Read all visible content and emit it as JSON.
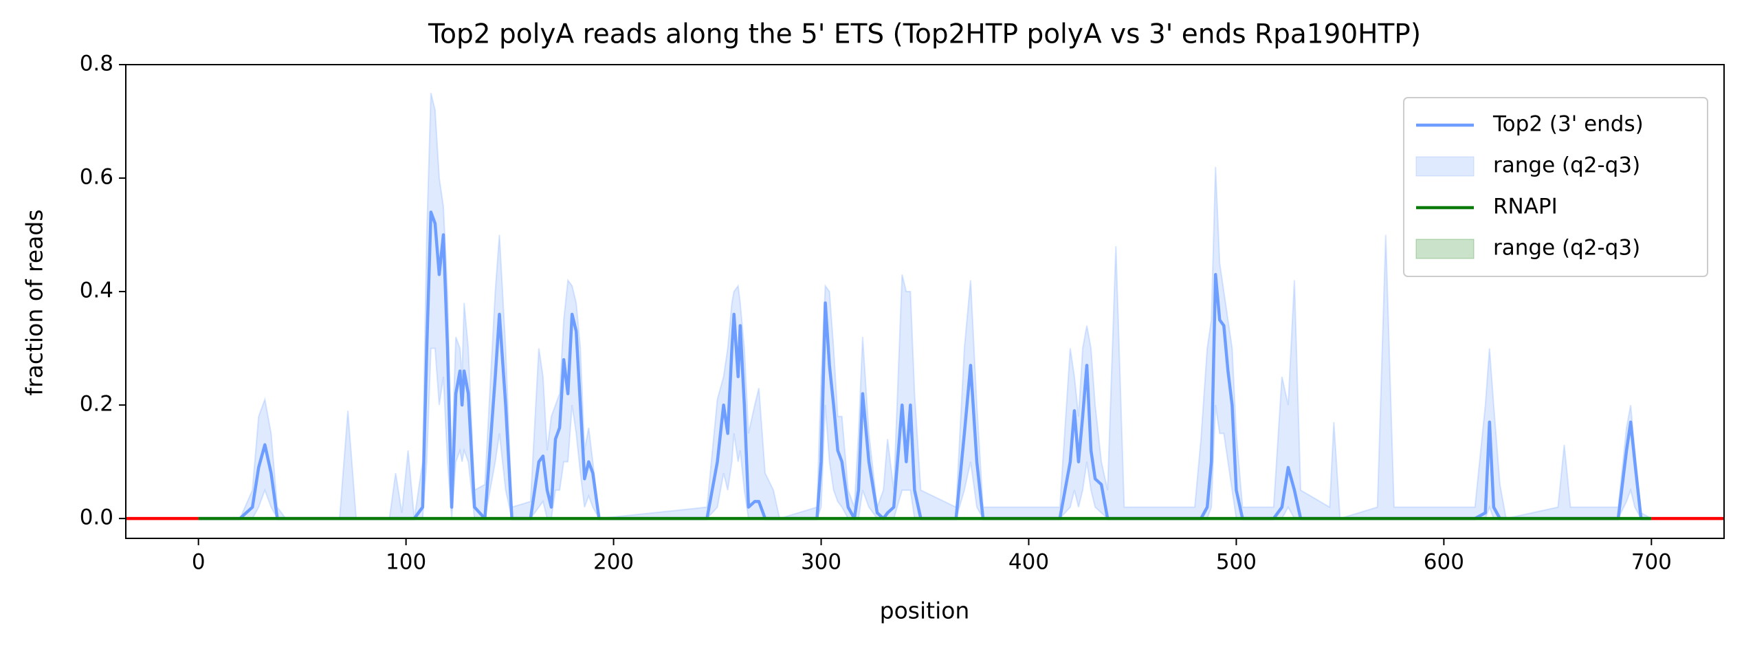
{
  "chart_data": {
    "type": "line",
    "title": "Top2 polyA reads along the 5' ETS (Top2HTP polyA vs 3' ends Rpa190HTP)",
    "x_label": "position",
    "y_label": "fraction of reads",
    "xlim": [
      -35,
      735
    ],
    "ylim": [
      -0.035,
      0.8
    ],
    "xticks": [
      0,
      100,
      200,
      300,
      400,
      500,
      600,
      700
    ],
    "yticks": [
      {
        "value": 0,
        "label": "0.0"
      },
      0.2,
      0.4,
      0.6,
      0.8
    ],
    "legend": "upper right",
    "series": [
      {
        "name": "Top2 (3' ends)",
        "color": "#6d9eff",
        "kind": "line",
        "x": [
          0,
          20,
          26,
          29,
          32,
          35,
          38,
          42,
          68,
          72,
          76,
          92,
          95,
          98,
          101,
          104,
          108,
          110,
          112,
          114,
          116,
          118,
          120,
          122,
          124,
          126,
          127,
          128,
          130,
          133,
          138,
          143,
          145,
          148,
          151,
          160,
          164,
          166,
          168,
          170,
          172,
          174,
          176,
          178,
          180,
          182,
          184,
          186,
          188,
          190,
          193,
          245,
          250,
          253,
          255,
          257,
          258,
          260,
          261,
          263,
          265,
          268,
          270,
          273,
          277,
          280,
          298,
          300,
          302,
          304,
          306,
          308,
          310,
          313,
          316,
          318,
          320,
          323,
          327,
          330,
          332,
          335,
          339,
          341,
          343,
          345,
          348,
          365,
          369,
          372,
          375,
          378,
          415,
          420,
          422,
          424,
          426,
          428,
          430,
          432,
          435,
          438,
          442,
          446,
          480,
          483,
          486,
          488,
          490,
          492,
          494,
          496,
          498,
          500,
          503,
          518,
          522,
          525,
          528,
          531,
          545,
          547,
          550,
          568,
          572,
          576,
          615,
          620,
          622,
          624,
          627,
          630,
          655,
          658,
          661,
          684,
          688,
          690,
          692,
          695,
          700
        ],
        "values": [
          0,
          0,
          0.02,
          0.09,
          0.13,
          0.08,
          0,
          0,
          0,
          0,
          0,
          0,
          0,
          0,
          0,
          0,
          0.02,
          0.3,
          0.54,
          0.52,
          0.43,
          0.5,
          0.3,
          0.02,
          0.22,
          0.26,
          0.2,
          0.26,
          0.22,
          0.02,
          0,
          0.25,
          0.36,
          0.2,
          0,
          0,
          0.1,
          0.11,
          0.05,
          0.02,
          0.14,
          0.16,
          0.28,
          0.22,
          0.36,
          0.33,
          0.2,
          0.07,
          0.1,
          0.08,
          0,
          0,
          0.1,
          0.2,
          0.15,
          0.3,
          0.36,
          0.25,
          0.34,
          0.2,
          0.02,
          0.03,
          0.03,
          0,
          0,
          0,
          0,
          0.1,
          0.38,
          0.27,
          0.2,
          0.12,
          0.1,
          0.02,
          0,
          0.05,
          0.22,
          0.1,
          0.01,
          0,
          0.01,
          0.02,
          0.2,
          0.1,
          0.2,
          0.05,
          0,
          0,
          0.15,
          0.27,
          0.1,
          0,
          0,
          0.1,
          0.19,
          0.1,
          0.18,
          0.27,
          0.12,
          0.07,
          0.06,
          0,
          0,
          0,
          0,
          0,
          0.02,
          0.1,
          0.43,
          0.35,
          0.34,
          0.26,
          0.2,
          0.05,
          0,
          0,
          0.02,
          0.09,
          0.05,
          0,
          0,
          0,
          0,
          0,
          0,
          0,
          0,
          0.01,
          0.17,
          0.02,
          0,
          0,
          0,
          0,
          0,
          0,
          0.12,
          0.17,
          0.1,
          0,
          0
        ]
      },
      {
        "name": "range (q2-q3)",
        "color": "#6d9eff",
        "kind": "band",
        "x": [
          0,
          20,
          26,
          29,
          32,
          35,
          38,
          42,
          68,
          72,
          76,
          92,
          95,
          98,
          101,
          104,
          108,
          110,
          112,
          114,
          116,
          118,
          120,
          122,
          124,
          126,
          127,
          128,
          130,
          133,
          138,
          143,
          145,
          148,
          151,
          160,
          164,
          166,
          168,
          170,
          172,
          174,
          176,
          178,
          180,
          182,
          184,
          186,
          188,
          190,
          193,
          245,
          250,
          253,
          255,
          257,
          258,
          260,
          261,
          263,
          265,
          268,
          270,
          273,
          277,
          280,
          298,
          300,
          302,
          304,
          306,
          308,
          310,
          313,
          316,
          318,
          320,
          323,
          327,
          330,
          332,
          335,
          339,
          341,
          343,
          345,
          348,
          365,
          369,
          372,
          375,
          378,
          415,
          420,
          422,
          424,
          426,
          428,
          430,
          432,
          435,
          438,
          442,
          446,
          480,
          483,
          486,
          488,
          490,
          492,
          494,
          496,
          498,
          500,
          503,
          518,
          522,
          525,
          528,
          531,
          545,
          547,
          550,
          568,
          572,
          576,
          615,
          620,
          622,
          624,
          627,
          630,
          655,
          658,
          661,
          684,
          688,
          690,
          692,
          695,
          700
        ],
        "lower": [
          0,
          0,
          0,
          0.02,
          0.05,
          0.02,
          0,
          0,
          0,
          0,
          0,
          0,
          0,
          0,
          0,
          0,
          0,
          0.1,
          0.3,
          0.3,
          0.2,
          0.25,
          0.1,
          0,
          0.1,
          0.12,
          0.1,
          0.12,
          0.1,
          0,
          0,
          0.1,
          0.15,
          0.05,
          0,
          0,
          0.02,
          0.03,
          0,
          0,
          0.05,
          0.05,
          0.1,
          0.1,
          0.2,
          0.15,
          0.08,
          0.02,
          0.04,
          0.02,
          0,
          0,
          0.02,
          0.08,
          0.05,
          0.1,
          0.15,
          0.1,
          0.12,
          0.05,
          0,
          0,
          0,
          0,
          0,
          0,
          0,
          0.02,
          0.2,
          0.1,
          0.05,
          0.03,
          0.02,
          0,
          0,
          0,
          0.05,
          0.02,
          0,
          0,
          0,
          0,
          0.05,
          0.05,
          0.05,
          0,
          0,
          0,
          0.05,
          0.1,
          0.02,
          0,
          0,
          0.02,
          0.05,
          0.02,
          0.05,
          0.1,
          0.05,
          0.02,
          0.01,
          0,
          0,
          0,
          0,
          0,
          0,
          0.02,
          0.2,
          0.15,
          0.15,
          0.1,
          0.05,
          0,
          0,
          0,
          0,
          0.02,
          0,
          0,
          0,
          0,
          0,
          0,
          0,
          0,
          0,
          0,
          0.02,
          0,
          0,
          0,
          0,
          0,
          0,
          0,
          0.03,
          0.05,
          0.02,
          0,
          0
        ],
        "upper": [
          0,
          0,
          0.05,
          0.18,
          0.21,
          0.15,
          0.02,
          0,
          0,
          0.19,
          0,
          0,
          0.08,
          0.01,
          0.12,
          0,
          0.1,
          0.5,
          0.75,
          0.72,
          0.6,
          0.55,
          0.4,
          0.1,
          0.32,
          0.3,
          0.25,
          0.38,
          0.3,
          0.05,
          0.06,
          0.4,
          0.5,
          0.3,
          0.02,
          0.03,
          0.3,
          0.25,
          0.12,
          0.18,
          0.2,
          0.22,
          0.35,
          0.42,
          0.41,
          0.38,
          0.3,
          0.12,
          0.16,
          0.1,
          0,
          0.02,
          0.21,
          0.25,
          0.3,
          0.38,
          0.4,
          0.41,
          0.38,
          0.3,
          0.15,
          0.2,
          0.23,
          0.08,
          0.05,
          0,
          0.02,
          0.25,
          0.41,
          0.4,
          0.3,
          0.18,
          0.18,
          0.05,
          0.02,
          0.15,
          0.32,
          0.15,
          0.02,
          0.05,
          0.14,
          0.05,
          0.43,
          0.4,
          0.4,
          0.22,
          0.05,
          0.02,
          0.3,
          0.42,
          0.2,
          0.02,
          0.02,
          0.3,
          0.25,
          0.18,
          0.3,
          0.34,
          0.3,
          0.2,
          0.1,
          0.05,
          0.48,
          0.02,
          0.02,
          0.14,
          0.3,
          0.35,
          0.62,
          0.45,
          0.4,
          0.35,
          0.3,
          0.15,
          0.02,
          0.02,
          0.25,
          0.2,
          0.42,
          0.05,
          0.02,
          0.17,
          0,
          0.02,
          0.5,
          0.02,
          0.02,
          0.2,
          0.3,
          0.2,
          0.06,
          0,
          0.02,
          0.13,
          0.02,
          0.02,
          0.16,
          0.2,
          0.12,
          0.01,
          0
        ]
      },
      {
        "name": "RNAPI",
        "color": "#0a7a0a",
        "kind": "line",
        "x": [
          0,
          100,
          200,
          300,
          400,
          500,
          600,
          700
        ],
        "values": [
          0,
          0,
          0,
          0,
          0,
          0,
          0,
          0
        ]
      },
      {
        "name": "range (q2-q3)",
        "color": "#0a7a0a",
        "kind": "band",
        "x": [
          0,
          700
        ],
        "lower": [
          0,
          0
        ],
        "upper": [
          0,
          0
        ]
      },
      {
        "color": "#ff0000",
        "kind": "line",
        "x": [
          -35,
          0
        ],
        "values": [
          0,
          0
        ]
      },
      {
        "color": "#ff0000",
        "kind": "line",
        "x": [
          700,
          735
        ],
        "values": [
          0,
          0
        ]
      }
    ]
  }
}
